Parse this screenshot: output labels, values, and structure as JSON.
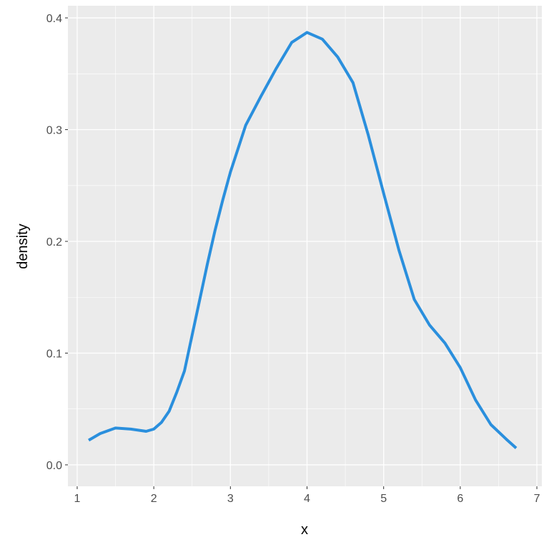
{
  "chart_data": {
    "type": "line",
    "xlabel": "x",
    "ylabel": "density",
    "x": [
      1.15,
      1.3,
      1.5,
      1.7,
      1.9,
      2.0,
      2.1,
      2.2,
      2.3,
      2.4,
      2.5,
      2.6,
      2.7,
      2.8,
      2.9,
      3.0,
      3.2,
      3.4,
      3.6,
      3.8,
      4.0,
      4.2,
      4.4,
      4.6,
      4.8,
      5.0,
      5.2,
      5.4,
      5.6,
      5.8,
      6.0,
      6.2,
      6.4,
      6.6,
      6.73
    ],
    "series": [
      {
        "color": "#2a8fdd",
        "values": [
          0.022,
          0.028,
          0.033,
          0.032,
          0.03,
          0.032,
          0.038,
          0.048,
          0.065,
          0.084,
          0.116,
          0.148,
          0.18,
          0.21,
          0.237,
          0.262,
          0.304,
          0.33,
          0.355,
          0.378,
          0.387,
          0.381,
          0.365,
          0.342,
          0.295,
          0.243,
          0.192,
          0.148,
          0.125,
          0.109,
          0.087,
          0.058,
          0.036,
          0.023,
          0.015
        ]
      }
    ],
    "xlim": [
      0.879,
      7.065
    ],
    "ylim": [
      -0.0192,
      0.4109
    ],
    "xticks": [
      1,
      2,
      3,
      4,
      5,
      6,
      7
    ],
    "yticks": [
      {
        "value": 0,
        "label": "0.0"
      },
      0.1,
      0.2,
      0.3,
      0.4
    ],
    "grid": true
  }
}
